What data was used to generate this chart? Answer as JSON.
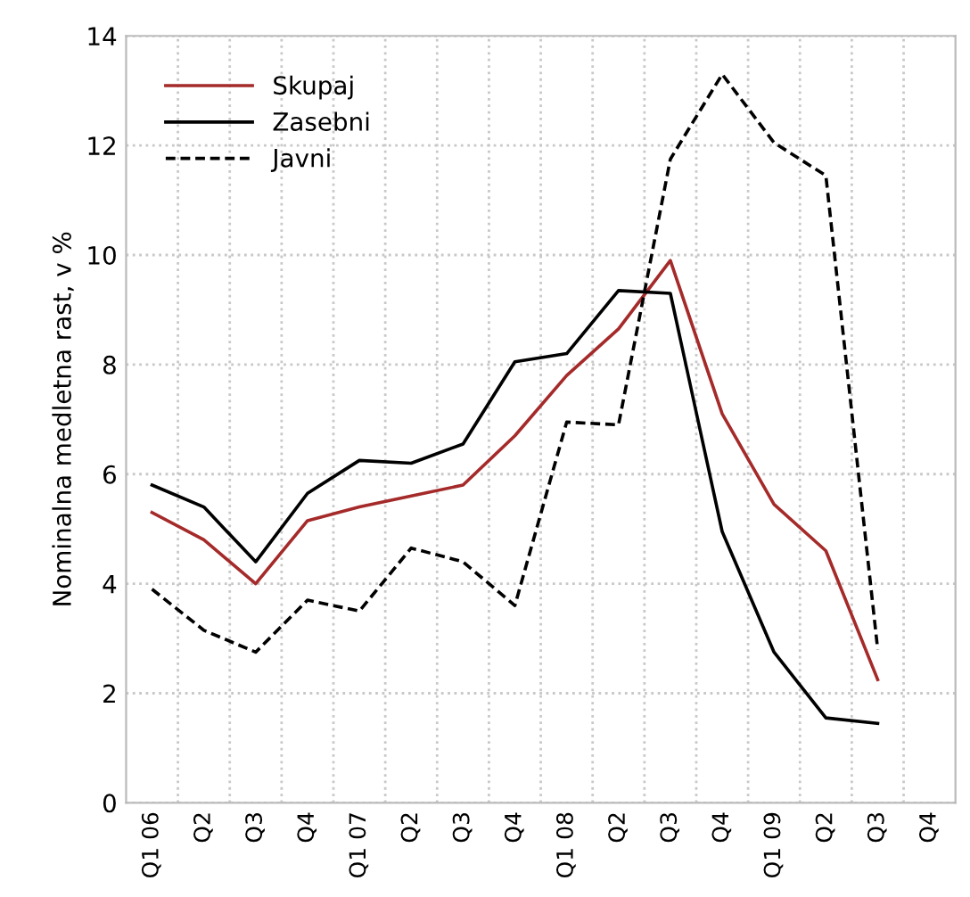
{
  "chart_data": {
    "type": "line",
    "ylabel": "Nominalna medletna rast, v %",
    "categories": [
      "Q1 06",
      "Q2",
      "Q3",
      "Q4",
      "Q1 07",
      "Q2",
      "Q3",
      "Q4",
      "Q1 08",
      "Q2",
      "Q3",
      "Q4",
      "Q1 09",
      "Q2",
      "Q3",
      "Q4"
    ],
    "series": [
      {
        "name": "Skupaj",
        "color": "#a52a2a",
        "line_style": "solid",
        "values": [
          5.3,
          4.8,
          4.0,
          5.15,
          5.4,
          5.6,
          5.8,
          6.7,
          7.8,
          8.65,
          9.9,
          7.1,
          5.45,
          4.6,
          2.25,
          null
        ]
      },
      {
        "name": "Zasebni",
        "color": "#000000",
        "line_style": "solid",
        "values": [
          5.8,
          5.4,
          4.4,
          5.65,
          6.25,
          6.2,
          6.55,
          8.05,
          8.2,
          9.35,
          9.3,
          4.95,
          2.75,
          1.55,
          1.45,
          null
        ]
      },
      {
        "name": "Javni",
        "color": "#000000",
        "line_style": "dashed",
        "values": [
          3.9,
          3.15,
          2.75,
          3.7,
          3.5,
          4.65,
          4.4,
          3.6,
          6.95,
          6.9,
          11.75,
          13.3,
          12.05,
          11.45,
          2.8,
          null
        ]
      }
    ],
    "ylim": [
      0,
      14
    ],
    "yticks": [
      0,
      2,
      4,
      6,
      8,
      10,
      12,
      14
    ],
    "grid": true,
    "legend": "top left",
    "marker": "none"
  }
}
